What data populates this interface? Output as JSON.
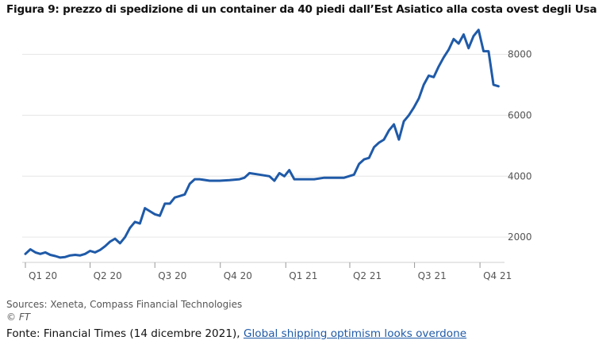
{
  "header": {
    "title": "Figura 9: prezzo di spedizione di un container da 40 piedi dall’Est Asiatico alla costa ovest degli Usa"
  },
  "footer": {
    "sources": "Sources: Xeneta, Compass Financial Technologies",
    "copyright": "© FT",
    "fonte_prefix": "Fonte: Financial Times (14 dicembre 2021), ",
    "link_text": "Global shipping optimism looks overdone"
  },
  "colors": {
    "line": "#1f5aa8",
    "grid": "#e6e6e6",
    "axis": "#999999"
  },
  "chart_data": {
    "type": "line",
    "title": "Figura 9: prezzo di spedizione di un container da 40 piedi dall’Est Asiatico alla costa ovest degli Usa",
    "xlabel": "",
    "ylabel": "",
    "ylim": [
      1250,
      9000
    ],
    "xlim": [
      "2020-01-01",
      "2021-10-31"
    ],
    "yticks": [
      2000,
      4000,
      6000,
      8000
    ],
    "yticklabels": [
      "2000",
      "4000",
      "6000",
      "8000"
    ],
    "xticks": [
      "2020-01-01",
      "2020-04-01",
      "2020-07-01",
      "2020-10-01",
      "2021-01-01",
      "2021-04-01",
      "2021-07-01",
      "2021-10-01"
    ],
    "xticklabels": [
      "Q1 20",
      "Q2 20",
      "Q3 20",
      "Q4 20",
      "Q1 21",
      "Q2 21",
      "Q3 21",
      "Q4 21"
    ],
    "grid": true,
    "legend": "none",
    "series": [
      {
        "points": [
          [
            "2020-01-01",
            1450
          ],
          [
            "2020-01-08",
            1600
          ],
          [
            "2020-01-15",
            1500
          ],
          [
            "2020-01-22",
            1450
          ],
          [
            "2020-01-29",
            1500
          ],
          [
            "2020-02-05",
            1420
          ],
          [
            "2020-02-12",
            1380
          ],
          [
            "2020-02-19",
            1330
          ],
          [
            "2020-02-26",
            1350
          ],
          [
            "2020-03-04",
            1400
          ],
          [
            "2020-03-11",
            1420
          ],
          [
            "2020-03-18",
            1400
          ],
          [
            "2020-03-25",
            1450
          ],
          [
            "2020-04-01",
            1550
          ],
          [
            "2020-04-08",
            1500
          ],
          [
            "2020-04-15",
            1580
          ],
          [
            "2020-04-22",
            1700
          ],
          [
            "2020-04-29",
            1850
          ],
          [
            "2020-05-06",
            1950
          ],
          [
            "2020-05-13",
            1800
          ],
          [
            "2020-05-20",
            2000
          ],
          [
            "2020-05-27",
            2300
          ],
          [
            "2020-06-03",
            2500
          ],
          [
            "2020-06-10",
            2450
          ],
          [
            "2020-06-17",
            2950
          ],
          [
            "2020-06-24",
            2850
          ],
          [
            "2020-07-01",
            2750
          ],
          [
            "2020-07-08",
            2700
          ],
          [
            "2020-07-15",
            3100
          ],
          [
            "2020-07-22",
            3100
          ],
          [
            "2020-07-29",
            3300
          ],
          [
            "2020-08-05",
            3350
          ],
          [
            "2020-08-12",
            3400
          ],
          [
            "2020-08-19",
            3750
          ],
          [
            "2020-08-26",
            3900
          ],
          [
            "2020-09-02",
            3900
          ],
          [
            "2020-09-16",
            3850
          ],
          [
            "2020-09-30",
            3850
          ],
          [
            "2020-10-14",
            3870
          ],
          [
            "2020-10-28",
            3900
          ],
          [
            "2020-11-04",
            3950
          ],
          [
            "2020-11-11",
            4100
          ],
          [
            "2020-11-25",
            4050
          ],
          [
            "2020-12-09",
            4000
          ],
          [
            "2020-12-16",
            3850
          ],
          [
            "2020-12-23",
            4100
          ],
          [
            "2020-12-30",
            4000
          ],
          [
            "2021-01-06",
            4200
          ],
          [
            "2021-01-13",
            3900
          ],
          [
            "2021-01-27",
            3900
          ],
          [
            "2021-02-10",
            3900
          ],
          [
            "2021-02-24",
            3950
          ],
          [
            "2021-03-10",
            3950
          ],
          [
            "2021-03-24",
            3950
          ],
          [
            "2021-04-07",
            4050
          ],
          [
            "2021-04-14",
            4400
          ],
          [
            "2021-04-21",
            4550
          ],
          [
            "2021-04-28",
            4600
          ],
          [
            "2021-05-05",
            4950
          ],
          [
            "2021-05-12",
            5100
          ],
          [
            "2021-05-19",
            5200
          ],
          [
            "2021-05-26",
            5500
          ],
          [
            "2021-06-02",
            5700
          ],
          [
            "2021-06-09",
            5200
          ],
          [
            "2021-06-16",
            5800
          ],
          [
            "2021-06-23",
            6000
          ],
          [
            "2021-06-30",
            6250
          ],
          [
            "2021-07-07",
            6550
          ],
          [
            "2021-07-14",
            7000
          ],
          [
            "2021-07-21",
            7300
          ],
          [
            "2021-07-28",
            7250
          ],
          [
            "2021-08-04",
            7600
          ],
          [
            "2021-08-11",
            7900
          ],
          [
            "2021-08-18",
            8150
          ],
          [
            "2021-08-25",
            8500
          ],
          [
            "2021-09-01",
            8350
          ],
          [
            "2021-09-08",
            8650
          ],
          [
            "2021-09-15",
            8200
          ],
          [
            "2021-09-22",
            8600
          ],
          [
            "2021-09-29",
            8800
          ],
          [
            "2021-10-06",
            8100
          ],
          [
            "2021-10-13",
            8100
          ],
          [
            "2021-10-20",
            7000
          ],
          [
            "2021-10-27",
            6950
          ]
        ]
      }
    ]
  }
}
